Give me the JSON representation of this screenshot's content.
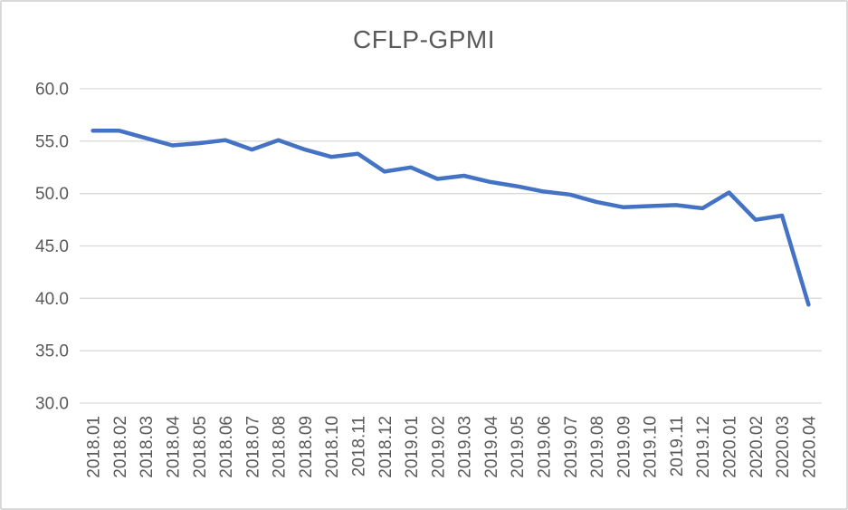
{
  "chart_data": {
    "type": "line",
    "title": "CFLP-GPMI",
    "categories": [
      "2018.01",
      "2018.02",
      "2018.03",
      "2018.04",
      "2018.05",
      "2018.06",
      "2018.07",
      "2018.08",
      "2018.09",
      "2018.10",
      "2018.11",
      "2018.12",
      "2019.01",
      "2019.02",
      "2019.03",
      "2019.04",
      "2019.05",
      "2019.06",
      "2019.07",
      "2019.08",
      "2019.09",
      "2019.10",
      "2019.11",
      "2019.12",
      "2020.01",
      "2020.02",
      "2020.03",
      "2020.04"
    ],
    "series": [
      {
        "name": "CFLP-GPMI",
        "values": [
          56.0,
          56.0,
          55.3,
          54.6,
          54.8,
          55.1,
          54.2,
          55.1,
          54.2,
          53.5,
          53.8,
          52.1,
          52.5,
          51.4,
          51.7,
          51.1,
          50.7,
          50.2,
          49.9,
          49.2,
          48.7,
          48.8,
          48.9,
          48.6,
          50.1,
          47.5,
          47.9,
          39.4
        ]
      }
    ],
    "xlabel": "",
    "ylabel": "",
    "ylim": [
      30.0,
      60.0
    ],
    "yticks": [
      30.0,
      35.0,
      40.0,
      45.0,
      50.0,
      55.0,
      60.0
    ],
    "ytick_labels": [
      "30.0",
      "35.0",
      "40.0",
      "45.0",
      "50.0",
      "55.0",
      "60.0"
    ],
    "grid": true,
    "legend": "none",
    "colors": {
      "line": "#4472C4",
      "grid": "#D9D9D9",
      "text": "#595959",
      "frame_border": "#D9D9D9",
      "background": "#FFFFFF"
    }
  }
}
